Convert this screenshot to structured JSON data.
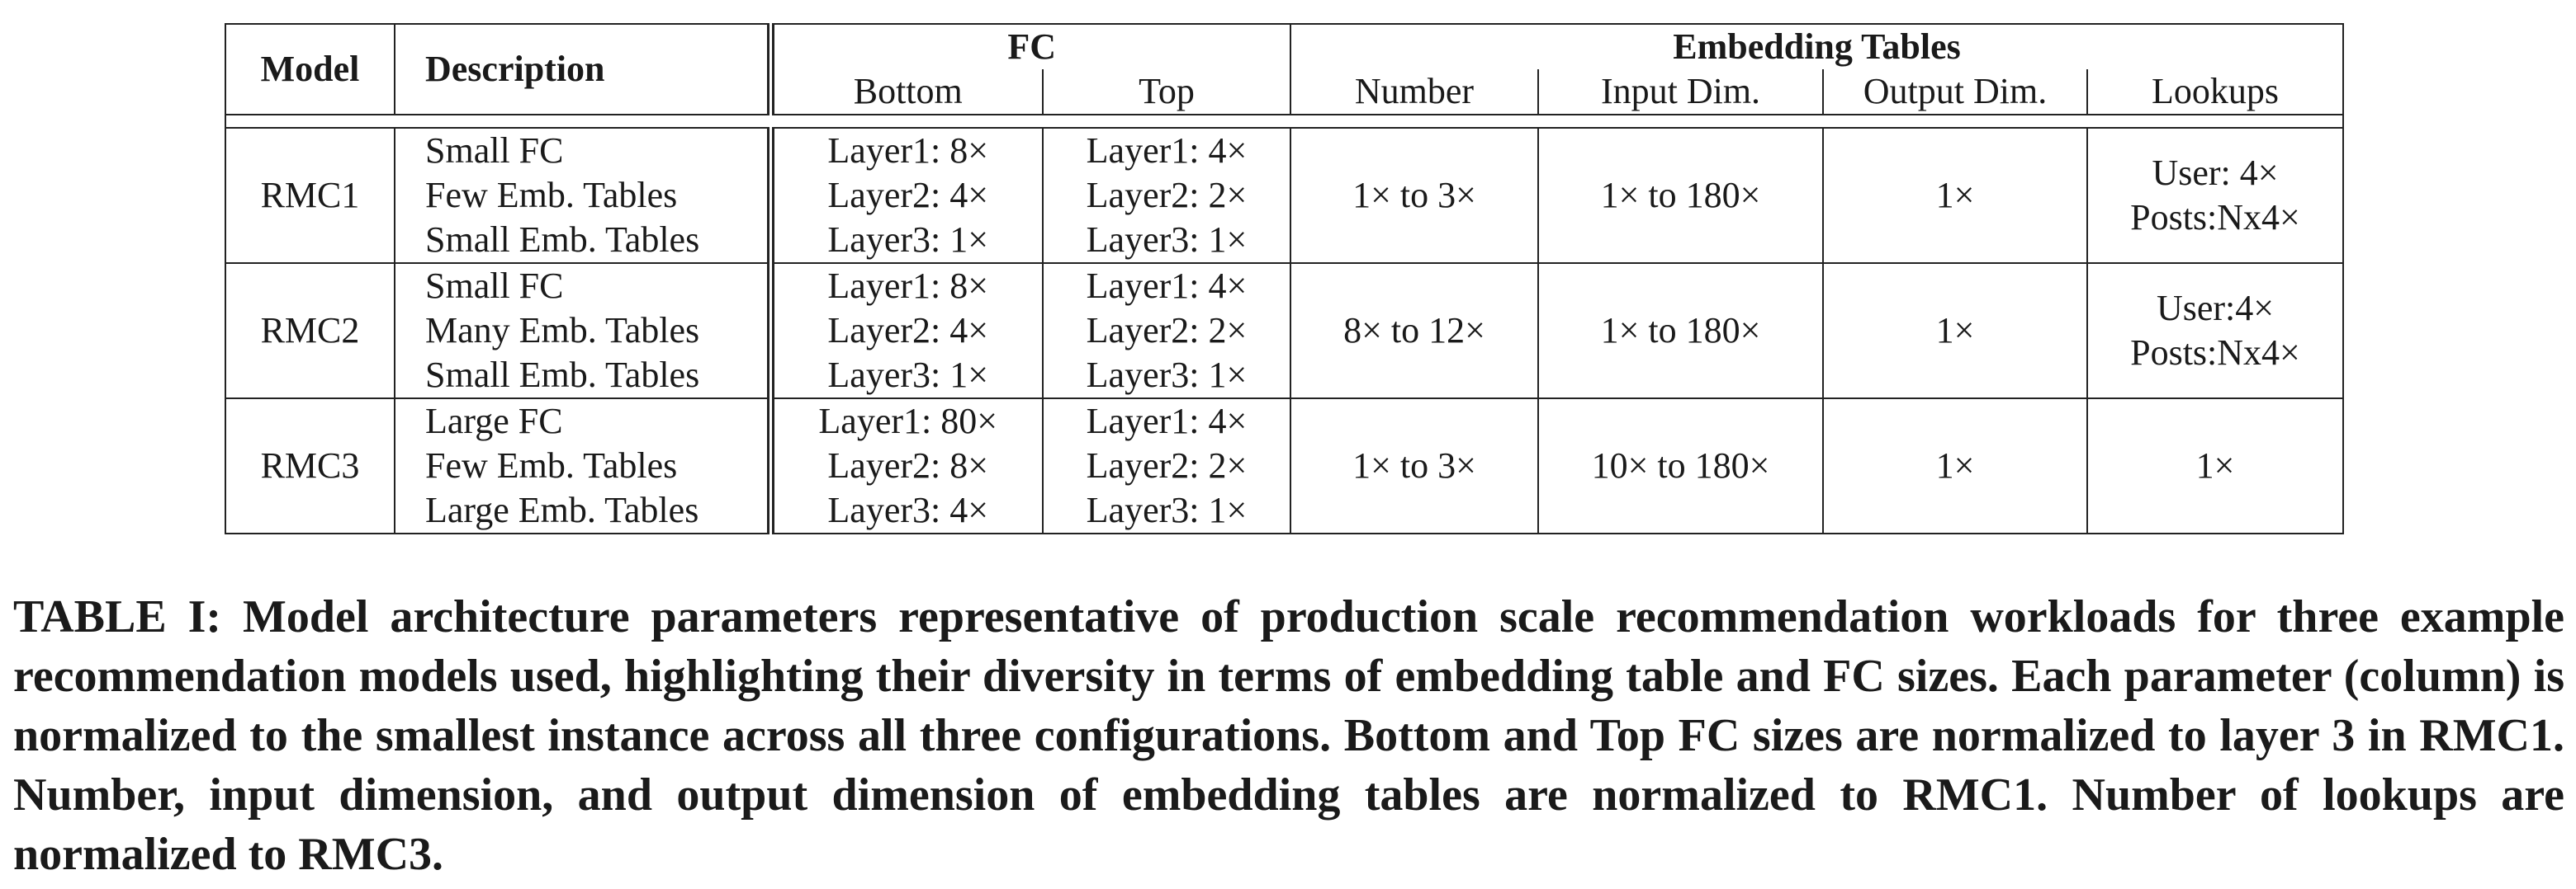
{
  "table": {
    "headers": {
      "model": "Model",
      "description": "Description",
      "fc": "FC",
      "fc_bottom": "Bottom",
      "fc_top": "Top",
      "embedding_tables": "Embedding Tables",
      "number": "Number",
      "input_dim": "Input Dim.",
      "output_dim": "Output Dim.",
      "lookups": "Lookups"
    },
    "rows": [
      {
        "model": "RMC1",
        "description": [
          "Small FC",
          "Few Emb. Tables",
          "Small Emb. Tables"
        ],
        "bottom": [
          "Layer1: 8×",
          "Layer2: 4×",
          "Layer3: 1×"
        ],
        "top": [
          "Layer1: 4×",
          "Layer2: 2×",
          "Layer3: 1×"
        ],
        "number": "1× to 3×",
        "input_dim": "1× to 180×",
        "output_dim": "1×",
        "lookups": [
          "User: 4×",
          "Posts:Nx4×"
        ]
      },
      {
        "model": "RMC2",
        "description": [
          "Small FC",
          "Many Emb. Tables",
          "Small Emb. Tables"
        ],
        "bottom": [
          "Layer1: 8×",
          "Layer2: 4×",
          "Layer3: 1×"
        ],
        "top": [
          "Layer1: 4×",
          "Layer2: 2×",
          "Layer3: 1×"
        ],
        "number": "8× to 12×",
        "input_dim": "1× to 180×",
        "output_dim": "1×",
        "lookups": [
          "User:4×",
          "Posts:Nx4×"
        ]
      },
      {
        "model": "RMC3",
        "description": [
          "Large FC",
          "Few Emb. Tables",
          "Large Emb. Tables"
        ],
        "bottom": [
          "Layer1: 80×",
          "Layer2: 8×",
          "Layer3: 4×"
        ],
        "top": [
          "Layer1: 4×",
          "Layer2: 2×",
          "Layer3: 1×"
        ],
        "number": "1× to 3×",
        "input_dim": "10× to 180×",
        "output_dim": "1×",
        "lookups": [
          "1×"
        ]
      }
    ]
  },
  "caption": "TABLE I: Model architecture parameters representative of production scale recommendation workloads for three example recommendation models used, highlighting their diversity in terms of embedding table and FC sizes. Each parameter (column) is normalized to the smallest instance across all three configurations. Bottom and Top FC sizes are normalized to layer 3 in RMC1. Number, input dimension, and output dimension of embedding tables are normalized to RMC1. Number of lookups are normalized to RMC3."
}
